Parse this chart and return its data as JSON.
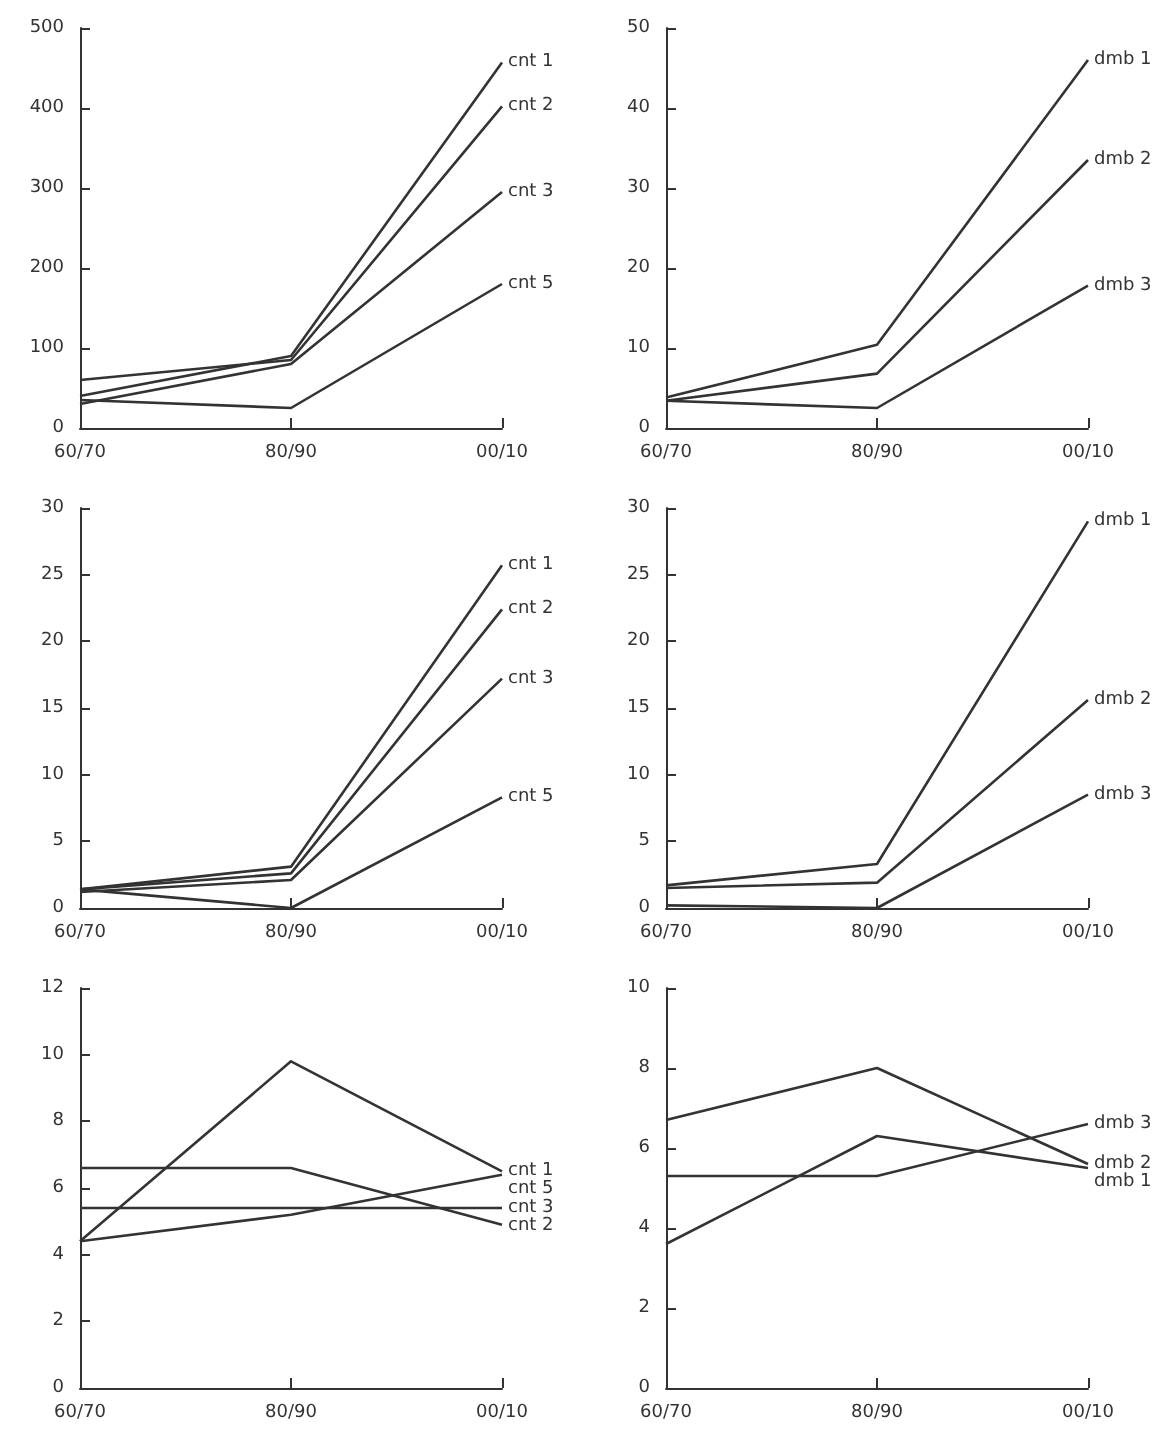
{
  "chart_data": [
    {
      "type": "line",
      "categories": [
        "60/70",
        "80/90",
        "00/10"
      ],
      "ylim": [
        0,
        500
      ],
      "yticks": [
        0,
        100,
        200,
        300,
        400,
        500
      ],
      "grid": false,
      "legend": false,
      "marker": "none",
      "series": [
        {
          "name": "cnt 1",
          "color": "#333333",
          "values": [
            40,
            90,
            457
          ]
        },
        {
          "name": "cnt 2",
          "color": "#333333",
          "values": [
            60,
            85,
            402
          ]
        },
        {
          "name": "cnt 3",
          "color": "#333333",
          "values": [
            30,
            80,
            295
          ]
        },
        {
          "name": "cnt 5",
          "color": "#333333",
          "values": [
            35,
            25,
            180
          ]
        }
      ]
    },
    {
      "type": "line",
      "categories": [
        "60/70",
        "80/90",
        "00/10"
      ],
      "ylim": [
        0,
        50
      ],
      "yticks": [
        0,
        10,
        20,
        30,
        40,
        50
      ],
      "grid": false,
      "legend": false,
      "marker": "none",
      "series": [
        {
          "name": "dmb 1",
          "color": "#333333",
          "values": [
            3.8,
            10.4,
            46
          ]
        },
        {
          "name": "dmb 2",
          "color": "#333333",
          "values": [
            3.4,
            6.8,
            33.5
          ]
        },
        {
          "name": "dmb 3",
          "color": "#333333",
          "values": [
            3.4,
            2.5,
            17.8
          ]
        }
      ]
    },
    {
      "type": "line",
      "categories": [
        "60/70",
        "80/90",
        "00/10"
      ],
      "ylim": [
        0,
        30
      ],
      "yticks": [
        0,
        5,
        10,
        15,
        20,
        25,
        30
      ],
      "grid": false,
      "legend": false,
      "marker": "none",
      "series": [
        {
          "name": "cnt 1",
          "color": "#333333",
          "values": [
            1.4,
            3.1,
            25.7
          ]
        },
        {
          "name": "cnt 2",
          "color": "#333333",
          "values": [
            1.4,
            2.6,
            22.4
          ]
        },
        {
          "name": "cnt 3",
          "color": "#333333",
          "values": [
            1.2,
            2.1,
            17.2
          ]
        },
        {
          "name": "cnt 5",
          "color": "#333333",
          "values": [
            1.4,
            0,
            8.3
          ]
        }
      ]
    },
    {
      "type": "line",
      "categories": [
        "60/70",
        "80/90",
        "00/10"
      ],
      "ylim": [
        0,
        30
      ],
      "yticks": [
        0,
        5,
        10,
        15,
        20,
        25,
        30
      ],
      "grid": false,
      "legend": false,
      "marker": "none",
      "series": [
        {
          "name": "dmb 1",
          "color": "#333333",
          "values": [
            1.7,
            3.3,
            29
          ]
        },
        {
          "name": "dmb 2",
          "color": "#333333",
          "values": [
            1.5,
            1.9,
            15.6
          ]
        },
        {
          "name": "dmb 3",
          "color": "#333333",
          "values": [
            0.2,
            0,
            8.5
          ]
        }
      ]
    },
    {
      "type": "line",
      "categories": [
        "60/70",
        "80/90",
        "00/10"
      ],
      "ylim": [
        0,
        12
      ],
      "yticks": [
        0,
        2,
        4,
        6,
        8,
        10,
        12
      ],
      "grid": false,
      "legend": false,
      "marker": "none",
      "series": [
        {
          "name": "cnt 1",
          "color": "#333333",
          "values": [
            4.4,
            9.8,
            6.5
          ]
        },
        {
          "name": "cnt 2",
          "color": "#333333",
          "values": [
            6.6,
            6.6,
            4.9
          ]
        },
        {
          "name": "cnt 3",
          "color": "#333333",
          "values": [
            5.4,
            5.4,
            5.4
          ]
        },
        {
          "name": "cnt 5",
          "color": "#333333",
          "values": [
            4.4,
            5.2,
            6.4
          ]
        }
      ]
    },
    {
      "type": "line",
      "categories": [
        "60/70",
        "80/90",
        "00/10"
      ],
      "ylim": [
        0,
        10
      ],
      "yticks": [
        0,
        2,
        4,
        6,
        8,
        10
      ],
      "grid": false,
      "legend": false,
      "marker": "none",
      "series": [
        {
          "name": "dmb 2",
          "color": "#333333",
          "values": [
            6.7,
            8.0,
            5.6
          ]
        },
        {
          "name": "dmb 1",
          "color": "#333333",
          "values": [
            3.6,
            6.3,
            5.5
          ]
        },
        {
          "name": "dmb 3",
          "color": "#333333",
          "values": [
            5.3,
            5.3,
            6.6
          ]
        }
      ]
    }
  ]
}
